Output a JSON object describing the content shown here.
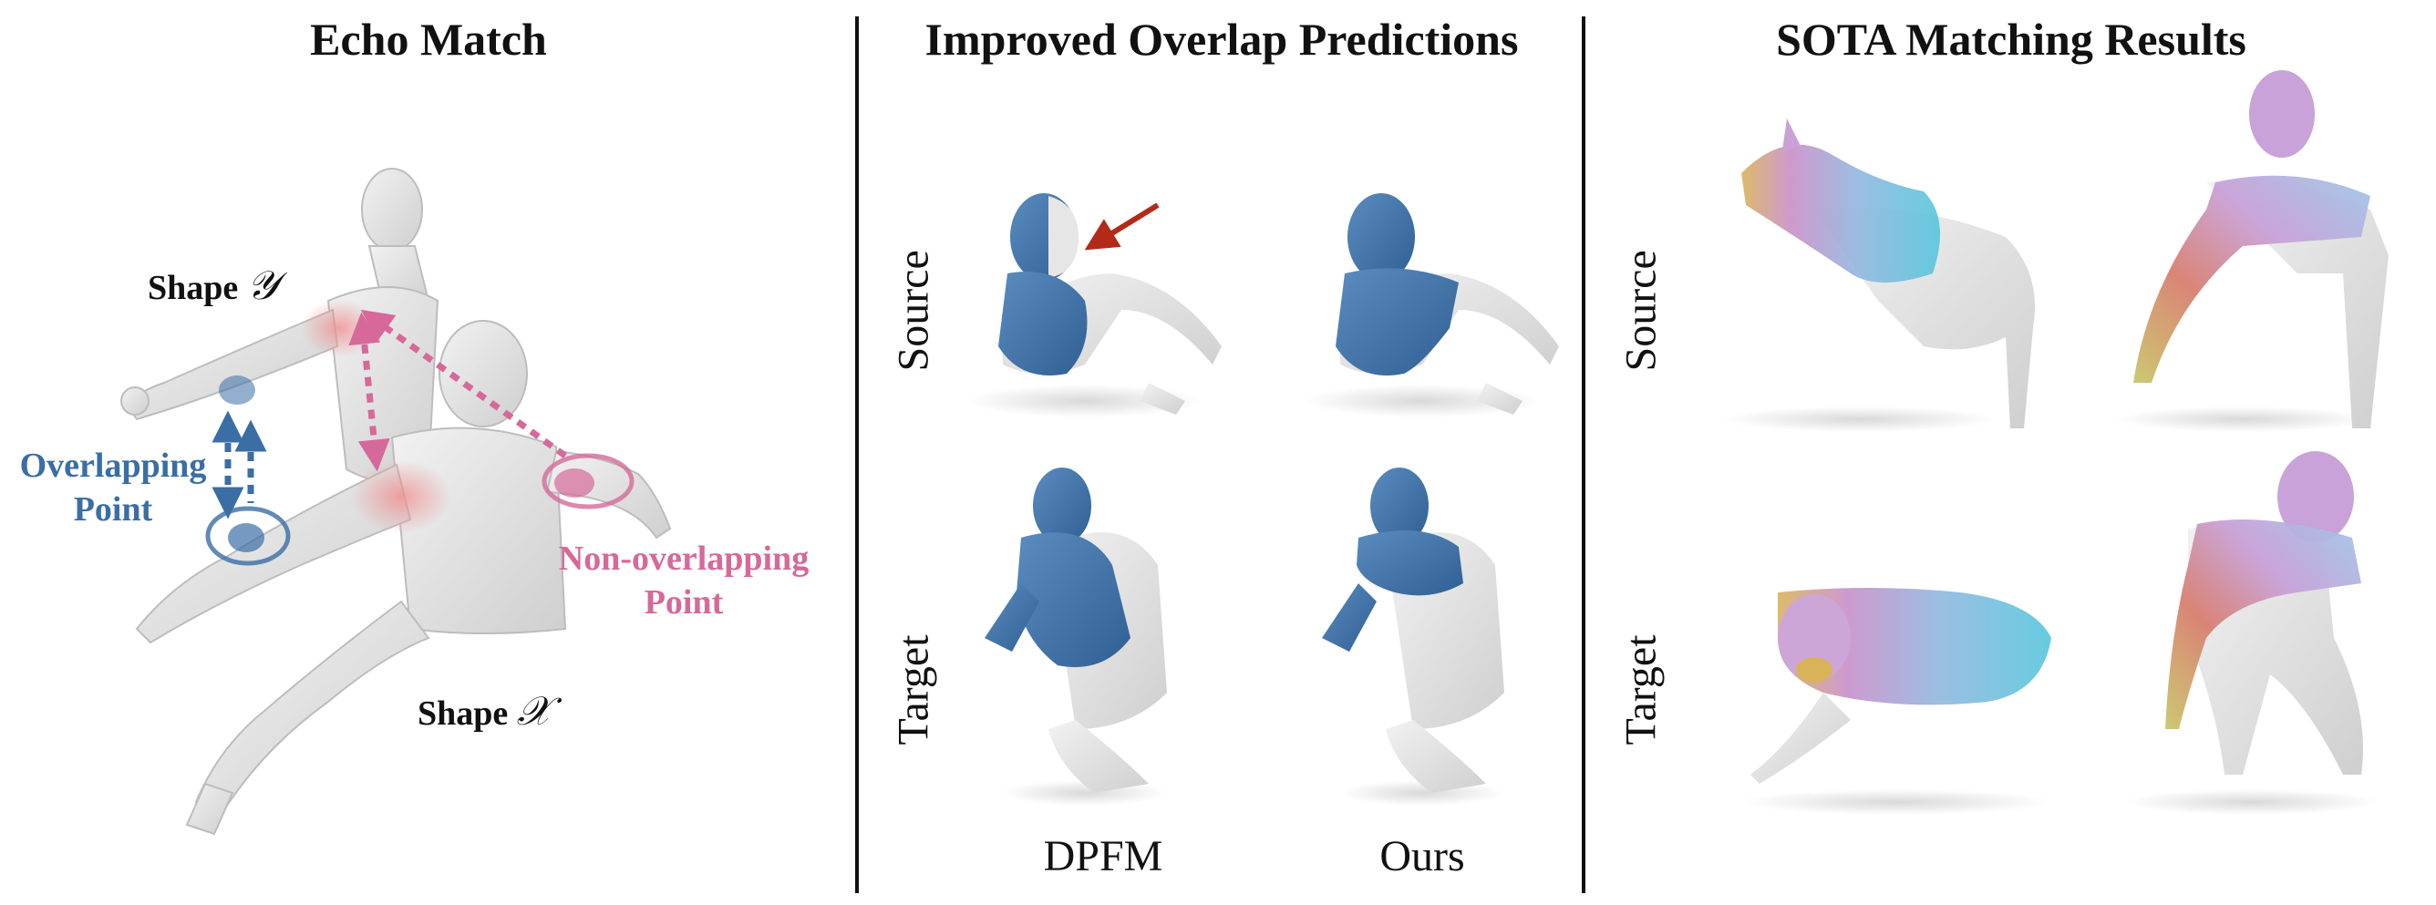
{
  "panels": {
    "echo_match": {
      "title": "Echo Match",
      "shape_y_label": "Shape",
      "shape_y_symbol": "𝒴",
      "shape_x_label": "Shape",
      "shape_x_symbol": "𝒳",
      "overlapping_line1": "Overlapping",
      "overlapping_line2": "Point",
      "nonoverlapping_line1": "Non-overlapping",
      "nonoverlapping_line2": "Point"
    },
    "overlap": {
      "title": "Improved Overlap Predictions",
      "row_source": "Source",
      "row_target": "Target",
      "col_dpfm": "DPFM",
      "col_ours": "Ours"
    },
    "sota": {
      "title": "SOTA Matching Results",
      "row_source": "Source",
      "row_target": "Target"
    }
  },
  "colors": {
    "overlap_blue": "#3a6ea5",
    "nonoverlap_pink": "#d6699a",
    "arrow_red": "#b22a18",
    "mesh_gray": "#e3e3e3"
  }
}
